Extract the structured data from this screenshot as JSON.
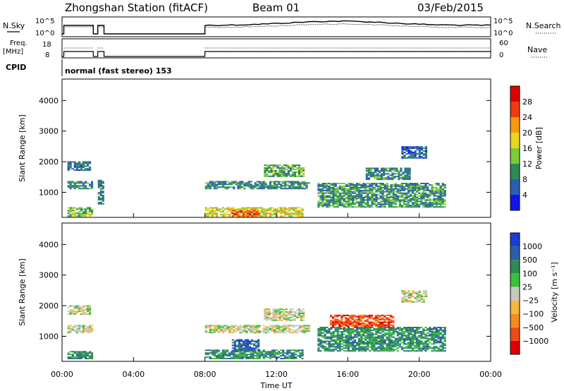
{
  "header": {
    "station": "Zhongshan Station (fitACF)",
    "beam": "Beam 01",
    "date": "03/Feb/2015"
  },
  "top_panels": {
    "nsky_label": "N.Sky",
    "nsky_ticks": [
      "10^5",
      "10^0"
    ],
    "nsearch_label": "N.Search",
    "nsearch_ticks": [
      "10^5",
      "10^0"
    ],
    "freq_label_1": "Freq.",
    "freq_label_2": "[MHz]",
    "freq_ticks": [
      "18",
      "8"
    ],
    "nave_label": "Nave",
    "nave_ticks": [
      "60",
      "0"
    ],
    "cpid_label": "CPID",
    "cpid_text": "normal (fast stereo) 153"
  },
  "chart_data": [
    {
      "type": "heatmap",
      "panel": "power",
      "ylabel": "Slant Range [km]",
      "xlabel": "",
      "y_ticks": [
        "1000",
        "2000",
        "3000",
        "4000"
      ],
      "ylim": [
        180,
        4700
      ],
      "colorbar_label": "Power [dB]",
      "colorbar_ticks": [
        "4",
        "8",
        "12",
        "16",
        "20",
        "24",
        "28"
      ],
      "colorbar_colors": [
        "#1414f0",
        "#2b5fb4",
        "#2e8b57",
        "#7acc3c",
        "#e8d81e",
        "#f59a0f",
        "#f03a0f",
        "#e00000"
      ],
      "regions": [
        {
          "t": [
            0.3,
            1.6
          ],
          "r": [
            1700,
            2000
          ],
          "v": 0.2
        },
        {
          "t": [
            0.3,
            1.7
          ],
          "r": [
            1100,
            1350
          ],
          "v": 0.25
        },
        {
          "t": [
            0.3,
            1.7
          ],
          "r": [
            200,
            500
          ],
          "v": 0.4
        },
        {
          "t": [
            2.0,
            2.3
          ],
          "r": [
            600,
            1400
          ],
          "v": 0.2
        },
        {
          "t": [
            8.0,
            13.8
          ],
          "r": [
            1100,
            1350
          ],
          "v": 0.25
        },
        {
          "t": [
            8.0,
            13.5
          ],
          "r": [
            200,
            500
          ],
          "v": 0.55
        },
        {
          "t": [
            9.5,
            11.0
          ],
          "r": [
            200,
            400
          ],
          "v": 0.8
        },
        {
          "t": [
            11.3,
            13.5
          ],
          "r": [
            1500,
            1900
          ],
          "v": 0.35
        },
        {
          "t": [
            14.3,
            21.5
          ],
          "r": [
            500,
            1300
          ],
          "v": 0.3
        },
        {
          "t": [
            17.0,
            19.5
          ],
          "r": [
            1400,
            1800
          ],
          "v": 0.25
        },
        {
          "t": [
            19.0,
            20.4
          ],
          "r": [
            2100,
            2500
          ],
          "v": 0.15
        }
      ]
    },
    {
      "type": "heatmap",
      "panel": "velocity",
      "ylabel": "Slant Range [km]",
      "xlabel": "Time UT",
      "x_ticks": [
        "00:00",
        "04:00",
        "08:00",
        "12:00",
        "16:00",
        "20:00",
        "00:00"
      ],
      "xlim": [
        0,
        24
      ],
      "y_ticks": [
        "1000",
        "2000",
        "3000",
        "4000"
      ],
      "ylim": [
        180,
        4700
      ],
      "colorbar_label": "Velocity [m s⁻¹]",
      "colorbar_ticks": [
        "1000",
        "500",
        "100",
        "25",
        "−25",
        "−100",
        "−500",
        "−1000"
      ],
      "colorbar_colors": [
        "#1a3fd6",
        "#2d5ea8",
        "#2e8b57",
        "#3cbf3c",
        "#c8c8c0",
        "#f5b640",
        "#f58c1e",
        "#f04a14",
        "#e00000"
      ],
      "regions": [
        {
          "t": [
            0.3,
            1.6
          ],
          "r": [
            1700,
            2000
          ],
          "c": 4
        },
        {
          "t": [
            0.3,
            1.7
          ],
          "r": [
            1100,
            1350
          ],
          "c": 4
        },
        {
          "t": [
            0.3,
            1.7
          ],
          "r": [
            250,
            500
          ],
          "c": 2
        },
        {
          "t": [
            8.0,
            13.8
          ],
          "r": [
            1100,
            1350
          ],
          "c": 4
        },
        {
          "t": [
            8.0,
            13.5
          ],
          "r": [
            250,
            550
          ],
          "c": 2
        },
        {
          "t": [
            9.5,
            11.0
          ],
          "r": [
            500,
            900
          ],
          "c": 1
        },
        {
          "t": [
            11.3,
            13.5
          ],
          "r": [
            1500,
            1900
          ],
          "c": 4
        },
        {
          "t": [
            14.3,
            21.5
          ],
          "r": [
            500,
            1300
          ],
          "c": 2
        },
        {
          "t": [
            15.0,
            18.5
          ],
          "r": [
            1300,
            1700
          ],
          "c": 7
        },
        {
          "t": [
            19.0,
            20.4
          ],
          "r": [
            2100,
            2500
          ],
          "c": 4
        }
      ]
    }
  ]
}
